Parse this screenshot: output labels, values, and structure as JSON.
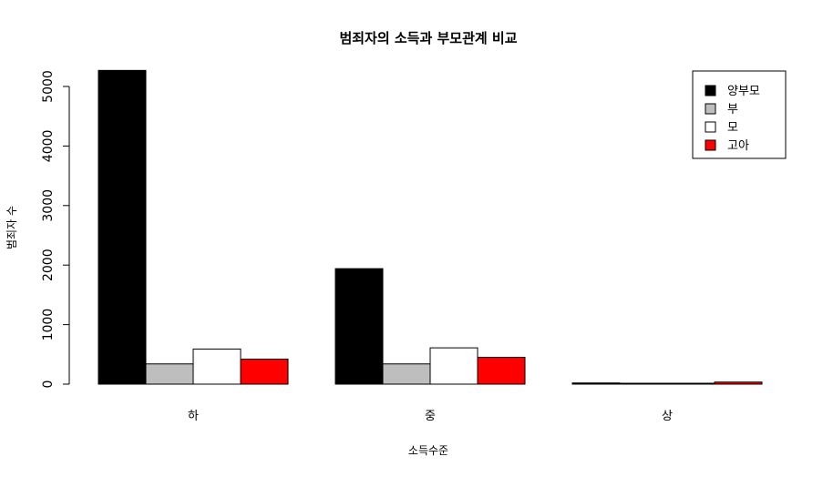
{
  "chart_data": {
    "type": "bar",
    "title": "범죄자의 소득과 부모관계 비교",
    "xlabel": "소득수준",
    "ylabel": "범죄자 수",
    "categories": [
      "하",
      "중",
      "상"
    ],
    "series": [
      {
        "name": "양부모",
        "color": "#000000",
        "values": [
          5270,
          1940,
          20
        ]
      },
      {
        "name": "부",
        "color": "#bebebe",
        "values": [
          340,
          340,
          10
        ]
      },
      {
        "name": "모",
        "color": "#ffffff",
        "values": [
          590,
          610,
          15
        ]
      },
      {
        "name": "고아",
        "color": "#ff0000",
        "values": [
          420,
          450,
          35
        ]
      }
    ],
    "yticks": [
      0,
      1000,
      2000,
      3000,
      4000,
      5000
    ],
    "ylim": [
      0,
      5270
    ],
    "grid": false,
    "legend_position": "top-right"
  }
}
